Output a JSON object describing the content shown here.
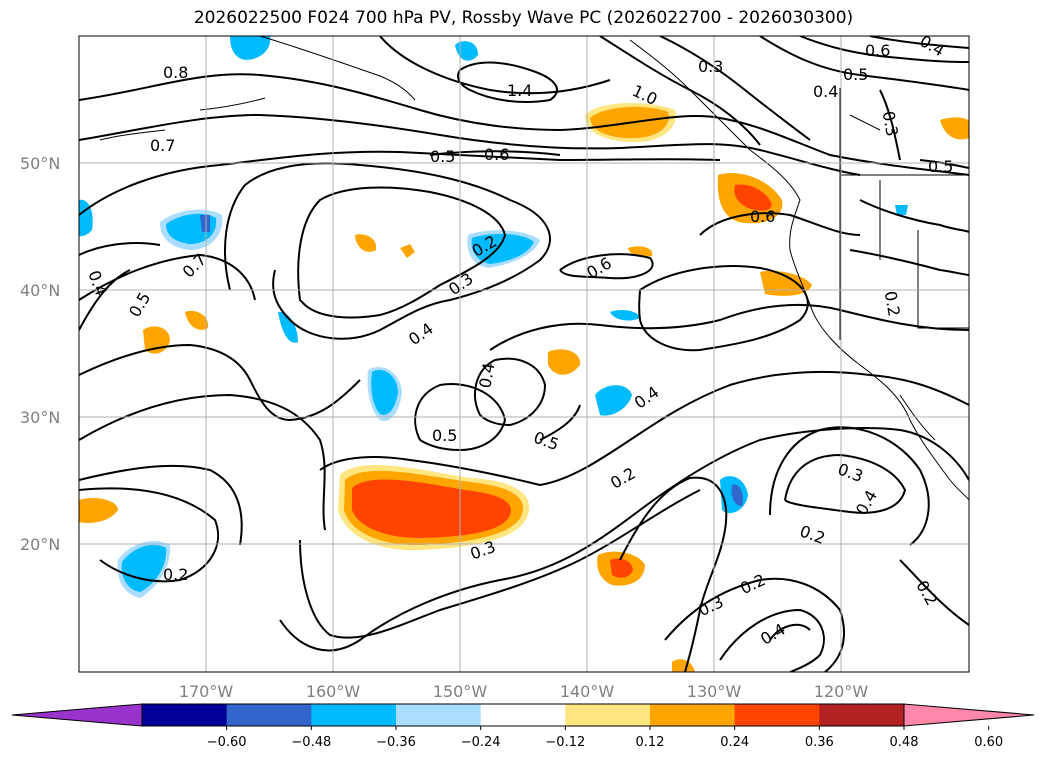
{
  "title": "2026022500 F024 700 hPa PV, Rossby Wave PC (2026022700 - 2026030300)",
  "lat_labels": [
    "50°N",
    "40°N",
    "30°N",
    "20°N"
  ],
  "lon_labels": [
    "170°W",
    "160°W",
    "150°W",
    "140°W",
    "130°W",
    "120°W"
  ],
  "colorbar": {
    "colors": [
      "#9933cc",
      "#000099",
      "#3366cc",
      "#00bbff",
      "#aaddff",
      "#ffffff",
      "#ffe680",
      "#ffa500",
      "#ff4400",
      "#b22222",
      "#ff88aa"
    ],
    "labels": [
      "−0.60",
      "−0.48",
      "−0.36",
      "−0.24",
      "−0.12",
      "0.12",
      "0.24",
      "0.36",
      "0.48",
      "0.60"
    ]
  },
  "contour_labels": [
    "0.8",
    "1.4",
    "1.0",
    "0.3",
    "0.6",
    "0.5",
    "0.4",
    "0.7",
    "0.5",
    "0.6",
    "0.3",
    "0.5",
    "0.2",
    "0.6",
    "0.6",
    "0.7",
    "0.4",
    "0.5",
    "0.3",
    "0.4",
    "0.2",
    "0.4",
    "0.4",
    "0.5",
    "0.5",
    "0.4",
    "0.2",
    "0.3",
    "0.4",
    "0.3",
    "0.2",
    "0.2",
    "0.2",
    "0.3",
    "0.4",
    "0.2"
  ]
}
